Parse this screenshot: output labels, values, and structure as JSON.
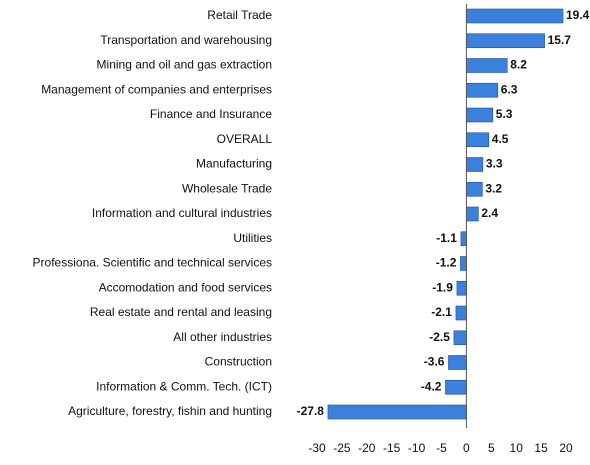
{
  "chart_data": {
    "type": "bar",
    "orientation": "horizontal",
    "categories": [
      "Retail Trade",
      "Transportation and warehousing",
      "Mining and oil and gas extraction",
      "Management of companies and enterprises",
      "Finance and Insurance",
      "OVERALL",
      "Manufacturing",
      "Wholesale Trade",
      "Information and cultural industries",
      "Utilities",
      "Professiona. Scientific and technical services",
      "Accomodation and food services",
      "Real estate and rental and leasing",
      "All other industries",
      "Construction",
      "Information & Comm. Tech. (ICT)",
      "Agriculture, forestry, fishin and hunting"
    ],
    "values": [
      19.4,
      15.7,
      8.2,
      6.3,
      5.3,
      4.5,
      3.3,
      3.2,
      2.4,
      -1.1,
      -1.2,
      -1.9,
      -2.1,
      -2.5,
      -3.6,
      -4.2,
      -27.8
    ],
    "color": "#3b80dc",
    "xlim": [
      -30,
      20
    ],
    "xticks": [
      -30,
      -25,
      -20,
      -15,
      -10,
      -5,
      0,
      5,
      10,
      15,
      20
    ],
    "grid": false
  }
}
